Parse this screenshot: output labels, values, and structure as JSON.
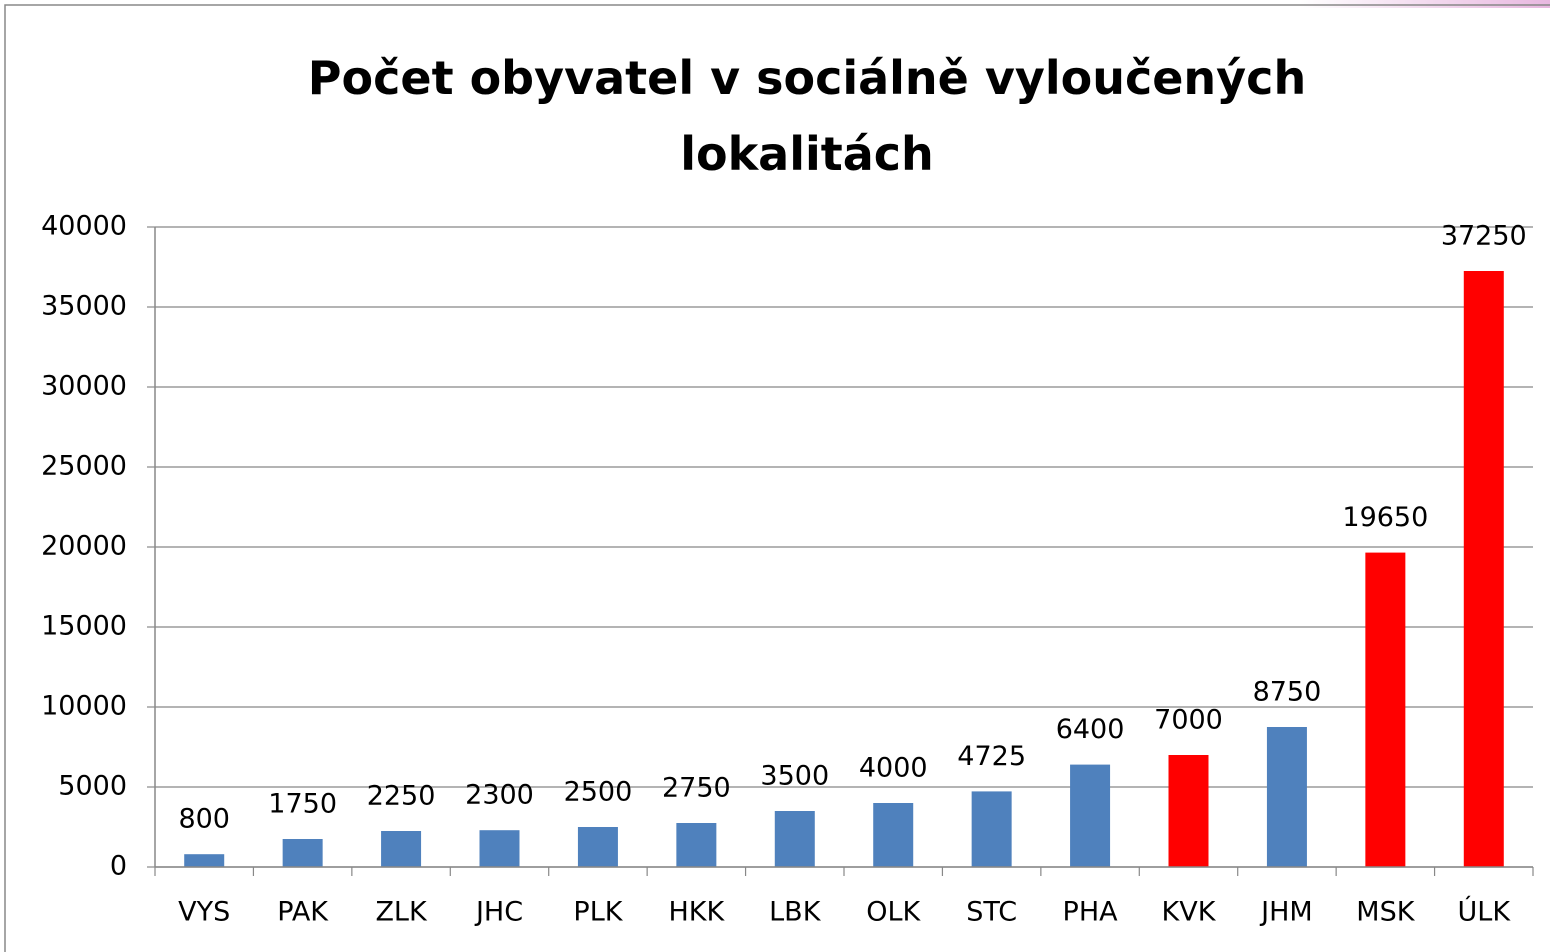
{
  "chart_data": {
    "type": "bar",
    "title": "Počet obyvatel v sociálně vyloučených lokalitách",
    "categories": [
      "VYS",
      "PAK",
      "ZLK",
      "JHC",
      "PLK",
      "HKK",
      "LBK",
      "OLK",
      "STC",
      "PHA",
      "KVK",
      "JHM",
      "MSK",
      "ÚLK"
    ],
    "values": [
      800,
      1750,
      2250,
      2300,
      2500,
      2750,
      3500,
      4000,
      4725,
      6400,
      7000,
      8750,
      19650,
      37250
    ],
    "colors": [
      "#4f81bd",
      "#4f81bd",
      "#4f81bd",
      "#4f81bd",
      "#4f81bd",
      "#4f81bd",
      "#4f81bd",
      "#4f81bd",
      "#4f81bd",
      "#4f81bd",
      "#ff0000",
      "#4f81bd",
      "#ff0000",
      "#ff0000"
    ],
    "ylim": [
      0,
      40000
    ],
    "yticks": [
      0,
      5000,
      10000,
      15000,
      20000,
      25000,
      30000,
      35000,
      40000
    ],
    "grid": true
  }
}
